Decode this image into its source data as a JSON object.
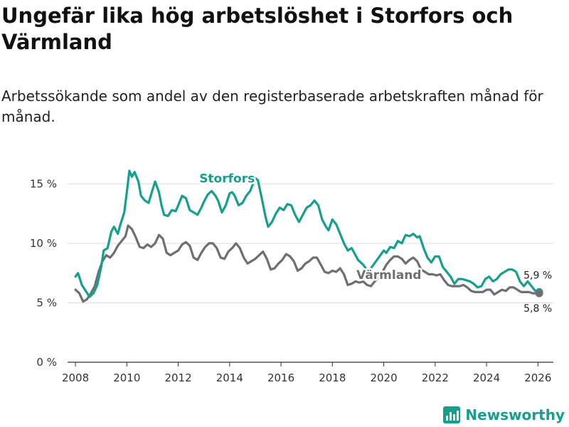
{
  "title": "Ungefär lika hög arbetslöshet i Storfors och Värmland",
  "subtitle": "Arbetssökande som andel av den registerbaserade arbetskraften månad för månad.",
  "brand": {
    "name": "Newsworthy",
    "color": "#15a08e"
  },
  "chart_data": {
    "type": "line",
    "ylim": [
      0,
      17
    ],
    "xlim": [
      2007.5,
      2026.6
    ],
    "yticks": [
      0,
      5,
      10,
      15
    ],
    "ytick_labels": [
      "0 %",
      "5 %",
      "10 %",
      "15 %"
    ],
    "xticks": [
      2008,
      2010,
      2012,
      2014,
      2016,
      2018,
      2020,
      2022,
      2024,
      2026
    ],
    "xtick_labels": [
      "2008",
      "2010",
      "2012",
      "2014",
      "2016",
      "2018",
      "2020",
      "2022",
      "2024",
      "2026"
    ],
    "grid": true,
    "series": [
      {
        "name": "Storfors",
        "color": "#15a08e",
        "end_label": "5,9 %",
        "end_value": 5.9,
        "points": [
          [
            2008.0,
            7.2
          ],
          [
            2008.1,
            7.5
          ],
          [
            2008.25,
            6.5
          ],
          [
            2008.4,
            6.0
          ],
          [
            2008.55,
            5.5
          ],
          [
            2008.7,
            5.8
          ],
          [
            2008.85,
            6.5
          ],
          [
            2009.0,
            8.0
          ],
          [
            2009.1,
            9.4
          ],
          [
            2009.25,
            9.6
          ],
          [
            2009.4,
            11.0
          ],
          [
            2009.5,
            11.4
          ],
          [
            2009.65,
            10.8
          ],
          [
            2009.75,
            11.6
          ],
          [
            2009.9,
            12.6
          ],
          [
            2010.0,
            14.3
          ],
          [
            2010.1,
            16.1
          ],
          [
            2010.2,
            15.6
          ],
          [
            2010.3,
            16.0
          ],
          [
            2010.45,
            15.2
          ],
          [
            2010.55,
            14.0
          ],
          [
            2010.7,
            13.6
          ],
          [
            2010.85,
            13.4
          ],
          [
            2011.0,
            14.5
          ],
          [
            2011.1,
            15.2
          ],
          [
            2011.25,
            14.3
          ],
          [
            2011.35,
            13.2
          ],
          [
            2011.45,
            12.4
          ],
          [
            2011.6,
            12.3
          ],
          [
            2011.75,
            12.8
          ],
          [
            2011.9,
            12.7
          ],
          [
            2012.0,
            13.2
          ],
          [
            2012.15,
            14.0
          ],
          [
            2012.3,
            13.8
          ],
          [
            2012.45,
            12.8
          ],
          [
            2012.6,
            12.6
          ],
          [
            2012.75,
            12.4
          ],
          [
            2012.9,
            13.0
          ],
          [
            2013.0,
            13.5
          ],
          [
            2013.15,
            14.1
          ],
          [
            2013.3,
            14.4
          ],
          [
            2013.45,
            14.0
          ],
          [
            2013.55,
            13.6
          ],
          [
            2013.7,
            12.6
          ],
          [
            2013.85,
            13.2
          ],
          [
            2014.0,
            14.2
          ],
          [
            2014.1,
            14.3
          ],
          [
            2014.2,
            14.0
          ],
          [
            2014.35,
            13.2
          ],
          [
            2014.5,
            13.4
          ],
          [
            2014.65,
            14.0
          ],
          [
            2014.8,
            14.4
          ],
          [
            2015.0,
            15.5
          ],
          [
            2015.1,
            15.3
          ],
          [
            2015.25,
            13.8
          ],
          [
            2015.4,
            12.2
          ],
          [
            2015.5,
            11.4
          ],
          [
            2015.65,
            11.8
          ],
          [
            2015.8,
            12.5
          ],
          [
            2015.95,
            13.0
          ],
          [
            2016.1,
            12.8
          ],
          [
            2016.25,
            13.3
          ],
          [
            2016.4,
            13.2
          ],
          [
            2016.55,
            12.4
          ],
          [
            2016.7,
            11.8
          ],
          [
            2016.85,
            12.4
          ],
          [
            2017.0,
            13.0
          ],
          [
            2017.15,
            13.2
          ],
          [
            2017.3,
            13.6
          ],
          [
            2017.45,
            13.2
          ],
          [
            2017.6,
            12.0
          ],
          [
            2017.75,
            11.4
          ],
          [
            2017.85,
            11.1
          ],
          [
            2018.0,
            12.0
          ],
          [
            2018.15,
            11.6
          ],
          [
            2018.3,
            10.8
          ],
          [
            2018.45,
            10.0
          ],
          [
            2018.6,
            9.4
          ],
          [
            2018.75,
            9.6
          ],
          [
            2018.9,
            9.0
          ],
          [
            2019.0,
            8.6
          ],
          [
            2019.2,
            8.2
          ],
          [
            2019.4,
            7.6
          ],
          [
            2019.6,
            8.2
          ],
          [
            2019.8,
            8.8
          ],
          [
            2020.0,
            9.4
          ],
          [
            2020.1,
            9.2
          ],
          [
            2020.25,
            9.7
          ],
          [
            2020.4,
            9.6
          ],
          [
            2020.55,
            10.2
          ],
          [
            2020.7,
            10.0
          ],
          [
            2020.85,
            10.7
          ],
          [
            2021.0,
            10.6
          ],
          [
            2021.15,
            10.8
          ],
          [
            2021.3,
            10.5
          ],
          [
            2021.4,
            10.6
          ],
          [
            2021.55,
            9.6
          ],
          [
            2021.7,
            8.8
          ],
          [
            2021.85,
            8.4
          ],
          [
            2022.0,
            8.9
          ],
          [
            2022.15,
            8.9
          ],
          [
            2022.3,
            8.0
          ],
          [
            2022.45,
            7.6
          ],
          [
            2022.6,
            7.2
          ],
          [
            2022.75,
            6.6
          ],
          [
            2022.9,
            7.0
          ],
          [
            2023.05,
            7.0
          ],
          [
            2023.2,
            6.9
          ],
          [
            2023.35,
            6.8
          ],
          [
            2023.5,
            6.6
          ],
          [
            2023.65,
            6.3
          ],
          [
            2023.8,
            6.4
          ],
          [
            2023.95,
            7.0
          ],
          [
            2024.1,
            7.2
          ],
          [
            2024.25,
            6.8
          ],
          [
            2024.4,
            7.0
          ],
          [
            2024.55,
            7.4
          ],
          [
            2024.7,
            7.6
          ],
          [
            2024.85,
            7.8
          ],
          [
            2025.0,
            7.8
          ],
          [
            2025.15,
            7.6
          ],
          [
            2025.3,
            6.8
          ],
          [
            2025.45,
            6.4
          ],
          [
            2025.6,
            6.8
          ],
          [
            2025.75,
            6.4
          ],
          [
            2025.9,
            6.0
          ],
          [
            2026.05,
            5.9
          ]
        ]
      },
      {
        "name": "Värmland",
        "color": "#6e6e73",
        "end_label": "5,8 %",
        "end_value": 5.8,
        "points": [
          [
            2008.0,
            6.1
          ],
          [
            2008.15,
            5.8
          ],
          [
            2008.3,
            5.1
          ],
          [
            2008.45,
            5.3
          ],
          [
            2008.6,
            5.8
          ],
          [
            2008.75,
            6.4
          ],
          [
            2008.9,
            7.6
          ],
          [
            2009.05,
            8.5
          ],
          [
            2009.2,
            9.0
          ],
          [
            2009.35,
            8.8
          ],
          [
            2009.5,
            9.2
          ],
          [
            2009.65,
            9.8
          ],
          [
            2009.8,
            10.2
          ],
          [
            2009.95,
            10.6
          ],
          [
            2010.05,
            11.5
          ],
          [
            2010.2,
            11.2
          ],
          [
            2010.35,
            10.5
          ],
          [
            2010.5,
            9.7
          ],
          [
            2010.65,
            9.6
          ],
          [
            2010.8,
            9.9
          ],
          [
            2010.95,
            9.7
          ],
          [
            2011.1,
            10.0
          ],
          [
            2011.25,
            10.7
          ],
          [
            2011.4,
            10.4
          ],
          [
            2011.55,
            9.2
          ],
          [
            2011.7,
            9.0
          ],
          [
            2011.85,
            9.2
          ],
          [
            2012.0,
            9.4
          ],
          [
            2012.15,
            9.9
          ],
          [
            2012.3,
            10.1
          ],
          [
            2012.45,
            9.8
          ],
          [
            2012.6,
            8.8
          ],
          [
            2012.75,
            8.6
          ],
          [
            2012.9,
            9.2
          ],
          [
            2013.05,
            9.7
          ],
          [
            2013.2,
            10.0
          ],
          [
            2013.35,
            10.0
          ],
          [
            2013.5,
            9.6
          ],
          [
            2013.65,
            8.8
          ],
          [
            2013.8,
            8.7
          ],
          [
            2013.95,
            9.3
          ],
          [
            2014.1,
            9.6
          ],
          [
            2014.25,
            10.0
          ],
          [
            2014.4,
            9.6
          ],
          [
            2014.55,
            8.8
          ],
          [
            2014.7,
            8.3
          ],
          [
            2014.85,
            8.5
          ],
          [
            2015.0,
            8.7
          ],
          [
            2015.15,
            9.0
          ],
          [
            2015.3,
            9.3
          ],
          [
            2015.45,
            8.7
          ],
          [
            2015.6,
            7.8
          ],
          [
            2015.75,
            7.9
          ],
          [
            2015.9,
            8.3
          ],
          [
            2016.05,
            8.6
          ],
          [
            2016.2,
            9.1
          ],
          [
            2016.35,
            8.9
          ],
          [
            2016.5,
            8.5
          ],
          [
            2016.65,
            7.7
          ],
          [
            2016.8,
            7.9
          ],
          [
            2016.95,
            8.3
          ],
          [
            2017.1,
            8.5
          ],
          [
            2017.25,
            8.8
          ],
          [
            2017.4,
            8.8
          ],
          [
            2017.55,
            8.2
          ],
          [
            2017.7,
            7.6
          ],
          [
            2017.85,
            7.5
          ],
          [
            2018.0,
            7.7
          ],
          [
            2018.15,
            7.6
          ],
          [
            2018.3,
            7.9
          ],
          [
            2018.45,
            7.4
          ],
          [
            2018.6,
            6.5
          ],
          [
            2018.75,
            6.6
          ],
          [
            2018.9,
            6.8
          ],
          [
            2019.05,
            6.7
          ],
          [
            2019.2,
            6.8
          ],
          [
            2019.35,
            6.5
          ],
          [
            2019.5,
            6.4
          ],
          [
            2019.65,
            6.8
          ],
          [
            2019.8,
            7.1
          ],
          [
            2019.95,
            7.6
          ],
          [
            2020.1,
            8.2
          ],
          [
            2020.25,
            8.6
          ],
          [
            2020.4,
            8.9
          ],
          [
            2020.55,
            8.9
          ],
          [
            2020.7,
            8.7
          ],
          [
            2020.85,
            8.3
          ],
          [
            2021.0,
            8.6
          ],
          [
            2021.15,
            8.8
          ],
          [
            2021.3,
            8.5
          ],
          [
            2021.45,
            7.8
          ],
          [
            2021.6,
            7.6
          ],
          [
            2021.75,
            7.4
          ],
          [
            2021.9,
            7.4
          ],
          [
            2022.05,
            7.3
          ],
          [
            2022.2,
            7.4
          ],
          [
            2022.35,
            6.9
          ],
          [
            2022.5,
            6.5
          ],
          [
            2022.65,
            6.4
          ],
          [
            2022.8,
            6.4
          ],
          [
            2022.95,
            6.4
          ],
          [
            2023.1,
            6.5
          ],
          [
            2023.25,
            6.3
          ],
          [
            2023.4,
            6.0
          ],
          [
            2023.55,
            5.9
          ],
          [
            2023.7,
            5.9
          ],
          [
            2023.85,
            5.9
          ],
          [
            2024.0,
            6.1
          ],
          [
            2024.15,
            6.1
          ],
          [
            2024.3,
            5.7
          ],
          [
            2024.45,
            5.9
          ],
          [
            2024.6,
            6.1
          ],
          [
            2024.75,
            6.0
          ],
          [
            2024.9,
            6.3
          ],
          [
            2025.05,
            6.3
          ],
          [
            2025.2,
            6.1
          ],
          [
            2025.35,
            5.9
          ],
          [
            2025.5,
            5.9
          ],
          [
            2025.65,
            5.9
          ],
          [
            2025.8,
            5.8
          ],
          [
            2025.95,
            5.8
          ],
          [
            2026.05,
            5.8
          ]
        ]
      }
    ]
  }
}
